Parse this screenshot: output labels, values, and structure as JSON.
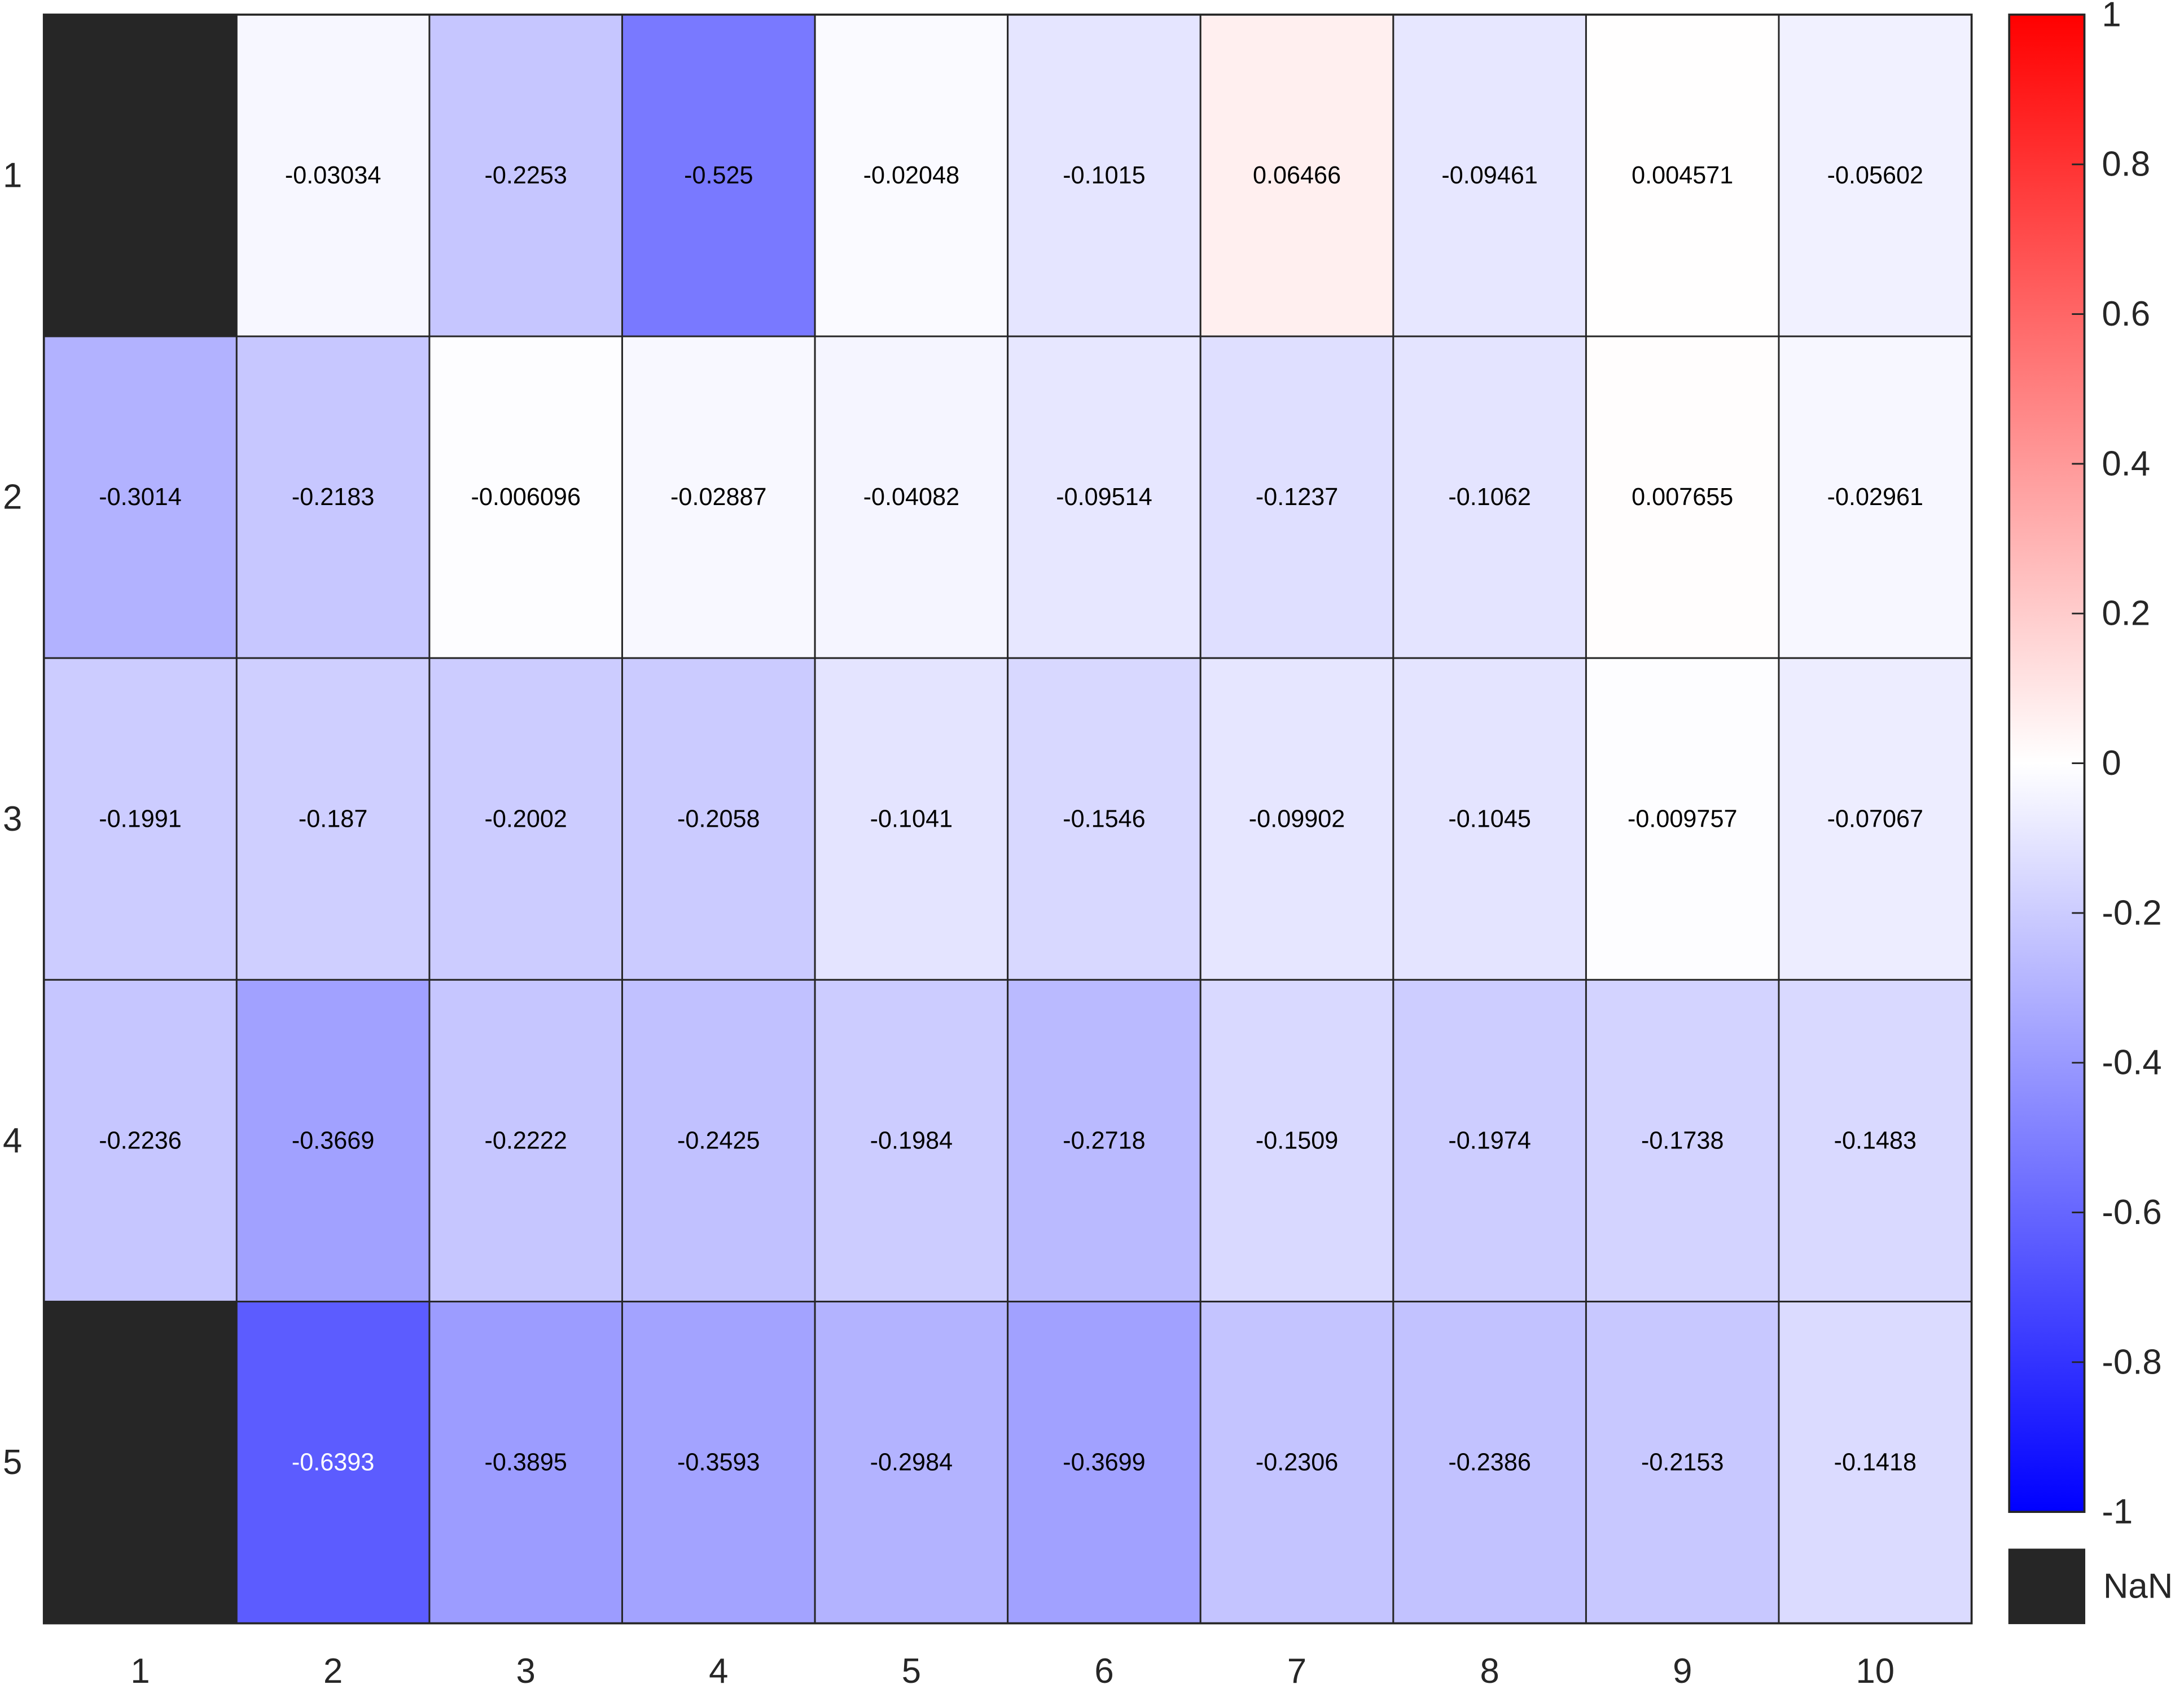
{
  "chart_data": {
    "type": "heatmap",
    "x_tick_labels": [
      "1",
      "2",
      "3",
      "4",
      "5",
      "6",
      "7",
      "8",
      "9",
      "10"
    ],
    "y_tick_labels": [
      "1",
      "2",
      "3",
      "4",
      "5"
    ],
    "cell_labels": [
      [
        "",
        "-0.03034",
        "-0.2253",
        "-0.525",
        "-0.02048",
        "-0.1015",
        "0.06466",
        "-0.09461",
        "0.004571",
        "-0.05602"
      ],
      [
        "-0.3014",
        "-0.2183",
        "-0.006096",
        "-0.02887",
        "-0.04082",
        "-0.09514",
        "-0.1237",
        "-0.1062",
        "0.007655",
        "-0.02961"
      ],
      [
        "-0.1991",
        "-0.187",
        "-0.2002",
        "-0.2058",
        "-0.1041",
        "-0.1546",
        "-0.09902",
        "-0.1045",
        "-0.009757",
        "-0.07067"
      ],
      [
        "-0.2236",
        "-0.3669",
        "-0.2222",
        "-0.2425",
        "-0.1984",
        "-0.2718",
        "-0.1509",
        "-0.1974",
        "-0.1738",
        "-0.1483"
      ],
      [
        "",
        "-0.6393",
        "-0.3895",
        "-0.3593",
        "-0.2984",
        "-0.3699",
        "-0.2306",
        "-0.2386",
        "-0.2153",
        "-0.1418"
      ]
    ],
    "values": [
      [
        null,
        -0.03034,
        -0.2253,
        -0.525,
        -0.02048,
        -0.1015,
        0.06466,
        -0.09461,
        0.004571,
        -0.05602
      ],
      [
        -0.3014,
        -0.2183,
        -0.006096,
        -0.02887,
        -0.04082,
        -0.09514,
        -0.1237,
        -0.1062,
        0.007655,
        -0.02961
      ],
      [
        -0.1991,
        -0.187,
        -0.2002,
        -0.2058,
        -0.1041,
        -0.1546,
        -0.09902,
        -0.1045,
        -0.009757,
        -0.07067
      ],
      [
        -0.2236,
        -0.3669,
        -0.2222,
        -0.2425,
        -0.1984,
        -0.2718,
        -0.1509,
        -0.1974,
        -0.1738,
        -0.1483
      ],
      [
        null,
        -0.6393,
        -0.3895,
        -0.3593,
        -0.2984,
        -0.3699,
        -0.2306,
        -0.2386,
        -0.2153,
        -0.1418
      ]
    ],
    "color_range": [
      -1,
      1
    ],
    "colormap": {
      "low": "#0000ff",
      "mid": "#ffffff",
      "high": "#ff0000"
    },
    "nan_color": "#262626",
    "colorbar_ticks": [
      "1",
      "0.8",
      "0.6",
      "0.4",
      "0.2",
      "0",
      "-0.2",
      "-0.4",
      "-0.6",
      "-0.8",
      "-1"
    ],
    "nan_label": "NaN",
    "grid": true
  }
}
